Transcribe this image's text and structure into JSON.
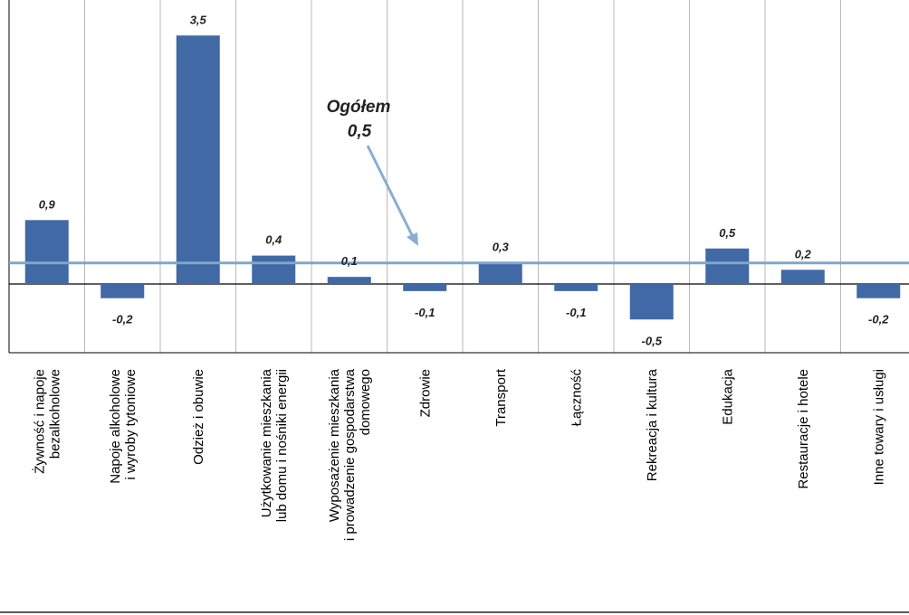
{
  "colors": {
    "bar": "#4169a5",
    "reference_line": "#7fa7c9",
    "arrow": "#8aaed0",
    "grid": "#b9b9b9",
    "axis": "#000000"
  },
  "chart_data": {
    "type": "bar",
    "categories": [
      [
        "Żywność i napoje",
        "bezalkoholowe"
      ],
      [
        "Napoje alkoholowe",
        "i wyroby tytoniowe"
      ],
      [
        "Odzież i obuwie"
      ],
      [
        "Użytkowanie mieszkania",
        "lub domu i nośniki energii"
      ],
      [
        "Wyposażenie mieszkania",
        "i prowadzenie gospodarstwa",
        "domowego"
      ],
      [
        "Zdrowie"
      ],
      [
        "Transport"
      ],
      [
        "Łączność"
      ],
      [
        "Rekreacja i kultura"
      ],
      [
        "Edukacja"
      ],
      [
        "Restauracje i hotele"
      ],
      [
        "Inne towary i usługi"
      ]
    ],
    "values": [
      0.9,
      -0.2,
      3.5,
      0.4,
      0.1,
      -0.1,
      0.3,
      -0.1,
      -0.5,
      0.5,
      0.2,
      -0.2
    ],
    "value_labels": [
      "0,9",
      "-0,2",
      "3,5",
      "0,4",
      "0,1",
      "-0,1",
      "0,3",
      "-0,1",
      "-0,5",
      "0,5",
      "0,2",
      "-0,2"
    ],
    "ylim": [
      -1.0,
      3.8
    ],
    "grid": "vertical category separators",
    "reference": {
      "value": 0.5,
      "label": "Ogółem",
      "value_label": "0,5"
    },
    "title": "",
    "xlabel": "",
    "ylabel": ""
  }
}
